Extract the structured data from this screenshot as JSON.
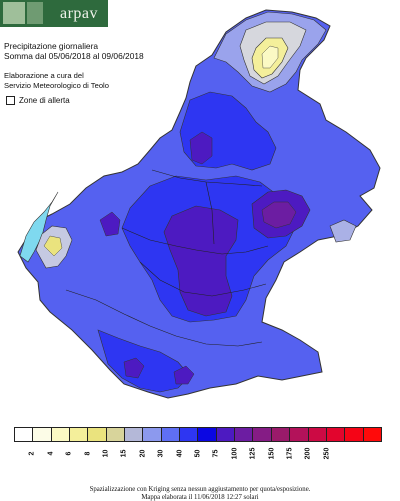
{
  "brand": {
    "name": "arpav"
  },
  "header": {
    "title": "Precipitazione giornaliera",
    "period": "Somma dal 05/06/2018 al 09/06/2018"
  },
  "credits": {
    "line1": "Elaborazione a cura del",
    "line2": "Servizio Meteorologico di Teolo"
  },
  "alert_zones": {
    "label": "Zone di allerta"
  },
  "legend": {
    "colors": [
      "#ffffff",
      "#fcfce7",
      "#fbf9c4",
      "#f4ef9b",
      "#eae37e",
      "#d8d49b",
      "#b4b8d8",
      "#8c99ee",
      "#5f6ff4",
      "#2e36f2",
      "#0b07e2",
      "#4d1ac1",
      "#6c1da2",
      "#851c85",
      "#9a1a6a",
      "#b3125a",
      "#cc0a44",
      "#e2052d",
      "#f50416",
      "#ff0a0a"
    ],
    "ticks": [
      "2",
      "4",
      "6",
      "8",
      "10",
      "15",
      "20",
      "30",
      "40",
      "50",
      "75",
      "100",
      "125",
      "150",
      "175",
      "200",
      "250"
    ]
  },
  "footer": {
    "line1": "Spazializzazione con Kriging senza nessun aggiustamento per quota/esposizione.",
    "line2": "Mappa elaborata il 11/06/2018 12:27 solari"
  }
}
